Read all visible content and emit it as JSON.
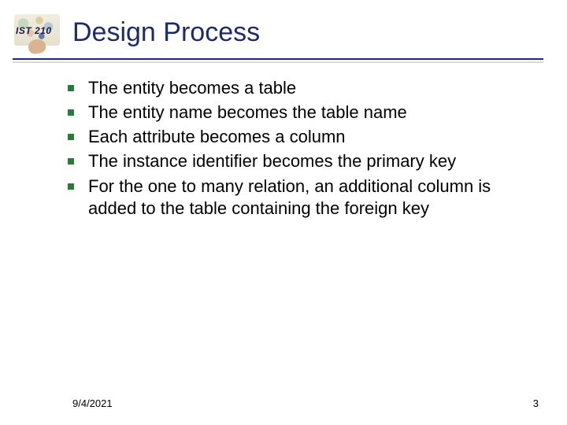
{
  "logo_label": "IST 210",
  "title": "Design Process",
  "title_color": "#1f2a6b",
  "title_fontsize": 34,
  "rule_color": "#1f2a6b",
  "bullet_marker_color": "#2a7a3a",
  "bullet_marker_size": 8,
  "body_fontsize": 22,
  "body_color": "#000000",
  "background_color": "#ffffff",
  "bullets": [
    "The entity becomes a table",
    "The entity name becomes the table name",
    "Each attribute becomes a column",
    "The instance identifier becomes the primary key",
    "For the one to many relation, an additional column is added to the table containing the foreign key"
  ],
  "footer_date": "9/4/2021",
  "footer_page": "3",
  "footer_fontsize": 13
}
